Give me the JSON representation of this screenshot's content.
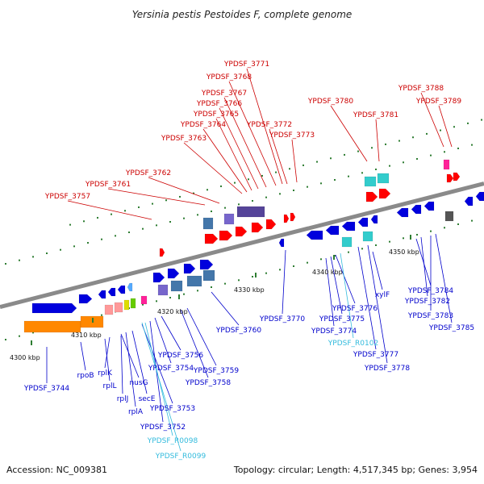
{
  "title": "Yersinia pestis Pestoides F, complete genome",
  "footer": {
    "accession": "Accession: NC_009381",
    "summary": "Topology: circular; Length: 4,517,345 bp; Genes: 3,954"
  },
  "colors": {
    "top_label": "#cc0000",
    "bottom_label": "#0000cc",
    "rna_label": "#33bbdd",
    "backbone": "#8a8a8a",
    "tick": "#2e7d32"
  },
  "ticks": [
    {
      "label": "4300 kbp"
    },
    {
      "label": "4310 kbp"
    },
    {
      "label": "4320 kbp"
    },
    {
      "label": "4330 kbp"
    },
    {
      "label": "4340 kbp"
    },
    {
      "label": "4350 kbp"
    }
  ],
  "top_labels": [
    {
      "text": "YPDSF_3771"
    },
    {
      "text": "YPDSF_3768"
    },
    {
      "text": "YPDSF_3767"
    },
    {
      "text": "YPDSF_3766"
    },
    {
      "text": "YPDSF_3765"
    },
    {
      "text": "YPDSF_3764"
    },
    {
      "text": "YPDSF_3772"
    },
    {
      "text": "YPDSF_3763"
    },
    {
      "text": "YPDSF_3773"
    },
    {
      "text": "YPDSF_3762"
    },
    {
      "text": "YPDSF_3761"
    },
    {
      "text": "YPDSF_3757"
    },
    {
      "text": "YPDSF_3780"
    },
    {
      "text": "YPDSF_3781"
    },
    {
      "text": "YPDSF_3788"
    },
    {
      "text": "YPDSF_3789"
    }
  ],
  "bottom_labels": [
    {
      "text": "YPDSF_3744",
      "kind": "gene"
    },
    {
      "text": "rpoB",
      "kind": "gene"
    },
    {
      "text": "rplL",
      "kind": "gene"
    },
    {
      "text": "rplK",
      "kind": "gene"
    },
    {
      "text": "nusG",
      "kind": "gene"
    },
    {
      "text": "rplJ",
      "kind": "gene"
    },
    {
      "text": "secE",
      "kind": "gene"
    },
    {
      "text": "rplA",
      "kind": "gene"
    },
    {
      "text": "YPDSF_3756",
      "kind": "gene"
    },
    {
      "text": "YPDSF_3754",
      "kind": "gene"
    },
    {
      "text": "YPDSF_3759",
      "kind": "gene"
    },
    {
      "text": "YPDSF_3758",
      "kind": "gene"
    },
    {
      "text": "YPDSF_3753",
      "kind": "gene"
    },
    {
      "text": "YPDSF_3752",
      "kind": "gene"
    },
    {
      "text": "YPDSF_R0098",
      "kind": "rna"
    },
    {
      "text": "YPDSF_R0099",
      "kind": "rna"
    },
    {
      "text": "YPDSF_3760",
      "kind": "gene"
    },
    {
      "text": "YPDSF_3770",
      "kind": "gene"
    },
    {
      "text": "YPDSF_3776",
      "kind": "gene"
    },
    {
      "text": "YPDSF_3775",
      "kind": "gene"
    },
    {
      "text": "YPDSF_3774",
      "kind": "gene"
    },
    {
      "text": "YPDSF_R0102",
      "kind": "rna"
    },
    {
      "text": "xylF",
      "kind": "gene"
    },
    {
      "text": "YPDSF_3777",
      "kind": "gene"
    },
    {
      "text": "YPDSF_3778",
      "kind": "gene"
    },
    {
      "text": "YPDSF_3784",
      "kind": "gene"
    },
    {
      "text": "YPDSF_3782",
      "kind": "gene"
    },
    {
      "text": "YPDSF_3783",
      "kind": "gene"
    },
    {
      "text": "YPDSF_3785",
      "kind": "gene"
    }
  ]
}
